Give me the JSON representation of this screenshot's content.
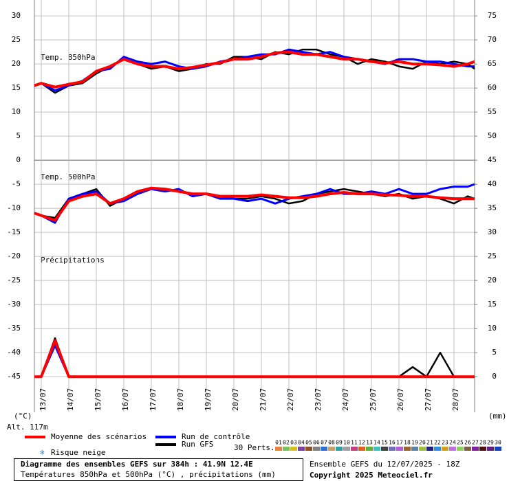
{
  "chart_data": {
    "type": "line",
    "labels": {
      "t850": "Temp. 850hPa",
      "t500": "Temp. 500hPa",
      "precip": "Précipitations"
    },
    "altitude": "Alt. 117m",
    "y_unit": "(°C)",
    "y2_unit": "(mm)",
    "title": "Diagramme des ensembles GEFS sur 384h : 41.9N 12.4E",
    "subtitle": "Températures 850hPa et 500hPa (°C) , précipitations (mm)",
    "run_info": "Ensemble GEFS du 12/07/2025 - 18Z",
    "copyright": "Copyright 2025 Meteociel.fr",
    "snow_risk": "Risque neige",
    "xlim": [
      0,
      384
    ],
    "ylim": [
      -52.4,
      33.3
    ],
    "y2lim": [
      -7.4,
      78.3
    ],
    "grid": true,
    "x": [
      0,
      6,
      18,
      30,
      42,
      54,
      66,
      78,
      90,
      102,
      114,
      126,
      138,
      150,
      162,
      174,
      186,
      198,
      210,
      222,
      234,
      246,
      258,
      270,
      282,
      294,
      306,
      318,
      330,
      342,
      354,
      366,
      378,
      384
    ],
    "xticks": [
      {
        "value": 6,
        "label": "13/07"
      },
      {
        "value": 30,
        "label": "14/07"
      },
      {
        "value": 54,
        "label": "15/07"
      },
      {
        "value": 78,
        "label": "16/07"
      },
      {
        "value": 102,
        "label": "17/07"
      },
      {
        "value": 126,
        "label": "18/07"
      },
      {
        "value": 150,
        "label": "19/07"
      },
      {
        "value": 174,
        "label": "20/07"
      },
      {
        "value": 198,
        "label": "21/07"
      },
      {
        "value": 222,
        "label": "22/07"
      },
      {
        "value": 246,
        "label": "23/07"
      },
      {
        "value": 270,
        "label": "24/07"
      },
      {
        "value": 294,
        "label": "25/07"
      },
      {
        "value": 318,
        "label": "26/07"
      },
      {
        "value": 342,
        "label": "27/07"
      },
      {
        "value": 366,
        "label": "28/07"
      }
    ],
    "yticks": [
      30,
      25,
      20,
      15,
      10,
      5,
      0,
      -5,
      -10,
      -15,
      -20,
      -25,
      -30,
      -35,
      -40,
      -45
    ],
    "y2ticks": [
      75,
      70,
      65,
      60,
      55,
      50,
      45,
      40,
      35,
      30,
      25,
      20,
      15,
      10,
      5,
      0
    ],
    "series": [
      {
        "name": "Run GFS",
        "color": "#000000",
        "width": 2.5,
        "t850": [
          15.5,
          16,
          14,
          15.5,
          16,
          18,
          19.5,
          21,
          20,
          19,
          19.5,
          18.5,
          19,
          20,
          20,
          21.5,
          21.5,
          21,
          22.5,
          22,
          23,
          23,
          22,
          21.5,
          20,
          21,
          20.5,
          19.5,
          19,
          20.5,
          20,
          20.5,
          20,
          19
        ],
        "t500": [
          -11,
          -11.5,
          -12,
          -8,
          -7,
          -6,
          -9.5,
          -8,
          -6.5,
          -6,
          -6,
          -6.5,
          -7,
          -7,
          -7.5,
          -8,
          -8,
          -7.5,
          -8,
          -9,
          -8.5,
          -7,
          -6.5,
          -6,
          -6.5,
          -7,
          -7.5,
          -7,
          -8,
          -7.5,
          -8,
          -9,
          -7.5,
          -8
        ],
        "precip": [
          0,
          0,
          8,
          0,
          0,
          0,
          0,
          0,
          0,
          0,
          0,
          0,
          0,
          0,
          0,
          0,
          0,
          0,
          0,
          0,
          0,
          0,
          0,
          0,
          0,
          0,
          0,
          0,
          2,
          0,
          5,
          0,
          0,
          0
        ]
      },
      {
        "name": "Run de contrôle",
        "color": "#0000ff",
        "width": 3,
        "t850": [
          15.5,
          16,
          14.5,
          15.5,
          16.5,
          18.5,
          19,
          21.5,
          20.5,
          20,
          20.5,
          19.5,
          19,
          19.5,
          20.5,
          21,
          21.5,
          22,
          22,
          23,
          22.5,
          22,
          22.5,
          21.5,
          21,
          20.5,
          20,
          21,
          21,
          20.5,
          20.5,
          20,
          19.5,
          19.5
        ],
        "t500": [
          -11,
          -11.5,
          -13,
          -8,
          -7,
          -6.5,
          -9,
          -8.5,
          -7,
          -6,
          -6.5,
          -6,
          -7.5,
          -7,
          -8,
          -8,
          -8.5,
          -8,
          -9,
          -8,
          -7.5,
          -7,
          -6,
          -7,
          -7,
          -6.5,
          -7,
          -6,
          -7,
          -7,
          -6,
          -5.5,
          -5.5,
          -5
        ],
        "precip": [
          0,
          0,
          6.5,
          0,
          0,
          0,
          0,
          0,
          0,
          0,
          0,
          0,
          0,
          0,
          0,
          0,
          0,
          0,
          0,
          0,
          0,
          0,
          0,
          0,
          0,
          0,
          0,
          0,
          0,
          0,
          0,
          0,
          0,
          0
        ]
      },
      {
        "name": "Moyenne des scénarios",
        "color": "#ff0000",
        "width": 4,
        "t850": [
          15.5,
          16,
          15.2,
          15.8,
          16.3,
          18.5,
          19.5,
          21,
          20,
          19.5,
          19.5,
          19,
          19.3,
          19.8,
          20.3,
          21,
          21,
          21.5,
          22.3,
          22.5,
          22,
          22,
          21.5,
          21,
          21,
          20.5,
          20.2,
          20.5,
          20,
          20,
          19.8,
          19.5,
          20,
          20.5
        ],
        "t500": [
          -11,
          -11.5,
          -12.5,
          -8.5,
          -7.5,
          -7,
          -9,
          -8,
          -6.5,
          -5.8,
          -6,
          -6.5,
          -7,
          -7,
          -7.5,
          -7.5,
          -7.5,
          -7.2,
          -7.5,
          -7.8,
          -7.8,
          -7.5,
          -7,
          -6.7,
          -7,
          -7,
          -7.2,
          -7.3,
          -7.5,
          -7.5,
          -7.8,
          -8,
          -8,
          -8
        ],
        "precip": [
          0,
          0,
          7.5,
          0,
          0,
          0,
          0,
          0,
          0,
          0,
          0,
          0,
          0,
          0,
          0,
          0,
          0,
          0,
          0,
          0,
          0,
          0,
          0,
          0,
          0,
          0,
          0,
          0,
          0,
          0,
          0,
          0,
          0,
          0
        ]
      }
    ],
    "perturbations": {
      "label": "30 Perts.",
      "names": [
        "01",
        "02",
        "03",
        "04",
        "05",
        "06",
        "07",
        "08",
        "09",
        "10",
        "11",
        "12",
        "13",
        "14",
        "15",
        "16",
        "17",
        "18",
        "19",
        "20",
        "21",
        "22",
        "23",
        "24",
        "25",
        "26",
        "27",
        "28",
        "29",
        "30"
      ],
      "colors": [
        "#e8823c",
        "#7cc060",
        "#d8c020",
        "#8040a0",
        "#905020",
        "#808080",
        "#3070d0",
        "#c8a070",
        "#30a0a0",
        "#a0a0a0",
        "#c04080",
        "#e06020",
        "#60b040",
        "#40c0c0",
        "#404040",
        "#7070c0",
        "#b060d0",
        "#a06030",
        "#6080a0",
        "#a0c040",
        "#202080",
        "#3090e0",
        "#d0a020",
        "#c070e0",
        "#90d060",
        "#806040",
        "#8020a0",
        "#501010",
        "#602080",
        "#1040c0"
      ]
    }
  }
}
